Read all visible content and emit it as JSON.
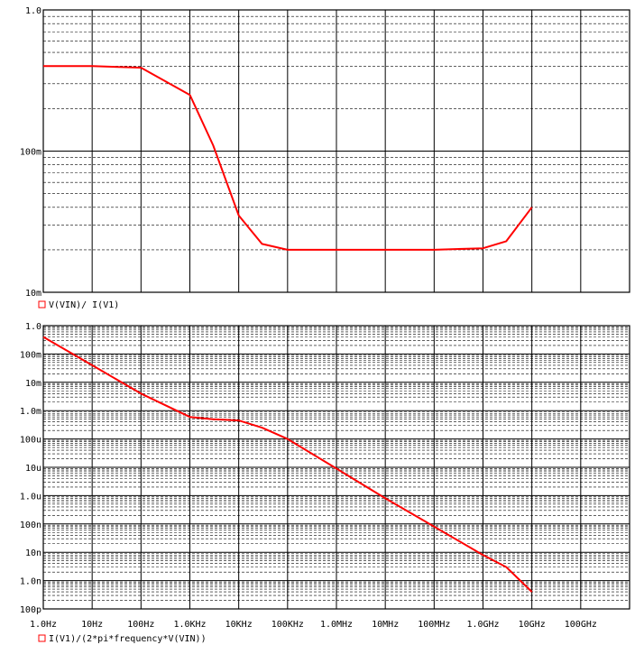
{
  "colors": {
    "trace": "#ff0000",
    "grid": "#000000",
    "axis": "#000000",
    "background": "#ffffff"
  },
  "legend_marker_icon": "red-square-outline-icon",
  "chart_data": [
    {
      "type": "line",
      "title": "",
      "xscale": "log",
      "yscale": "log",
      "xlim": [
        1,
        1000000000000
      ],
      "ylim": [
        0.01,
        1.0
      ],
      "grid": true,
      "grid_style": "solid major, dashed minor",
      "y_tick_labels": [
        "1.0",
        "100m",
        "10m"
      ],
      "legend": "bottom-left",
      "series": [
        {
          "name": "V(VIN)/ I(V1)",
          "color": "#ff0000",
          "x": [
            1,
            10,
            100,
            1000,
            3000,
            10000,
            30000,
            100000,
            1000000,
            10000000,
            100000000,
            1000000000,
            3000000000,
            10000000000
          ],
          "y": [
            0.4,
            0.4,
            0.39,
            0.25,
            0.11,
            0.035,
            0.022,
            0.02,
            0.02,
            0.02,
            0.02,
            0.0205,
            0.023,
            0.04
          ]
        }
      ]
    },
    {
      "type": "line",
      "title": "",
      "xscale": "log",
      "yscale": "log",
      "xlim": [
        1,
        1000000000000
      ],
      "ylim": [
        1e-10,
        1.0
      ],
      "grid": true,
      "grid_style": "solid major, dashed minor",
      "x_tick_labels": [
        "1.0Hz",
        "10Hz",
        "100Hz",
        "1.0KHz",
        "10KHz",
        "100KHz",
        "1.0MHz",
        "10MHz",
        "100MHz",
        "1.0GHz",
        "10GHz",
        "100GHz"
      ],
      "y_tick_labels": [
        "1.0",
        "100m",
        "10m",
        "1.0m",
        "100u",
        "10u",
        "1.0u",
        "100n",
        "10n",
        "1.0n",
        "100p"
      ],
      "legend": "bottom-left",
      "series": [
        {
          "name": "I(V1)/(2*pi*frequency*V(VIN))",
          "color": "#ff0000",
          "x": [
            1,
            10,
            100,
            1000,
            3000,
            10000,
            30000,
            100000,
            1000000,
            10000000,
            100000000,
            1000000000,
            3000000000,
            10000000000
          ],
          "y": [
            0.4,
            0.04,
            0.004,
            0.0006,
            0.0005,
            0.00045,
            0.00025,
            0.0001,
            9e-06,
            8e-07,
            8e-08,
            8e-09,
            3e-09,
            4e-10
          ]
        }
      ]
    }
  ]
}
